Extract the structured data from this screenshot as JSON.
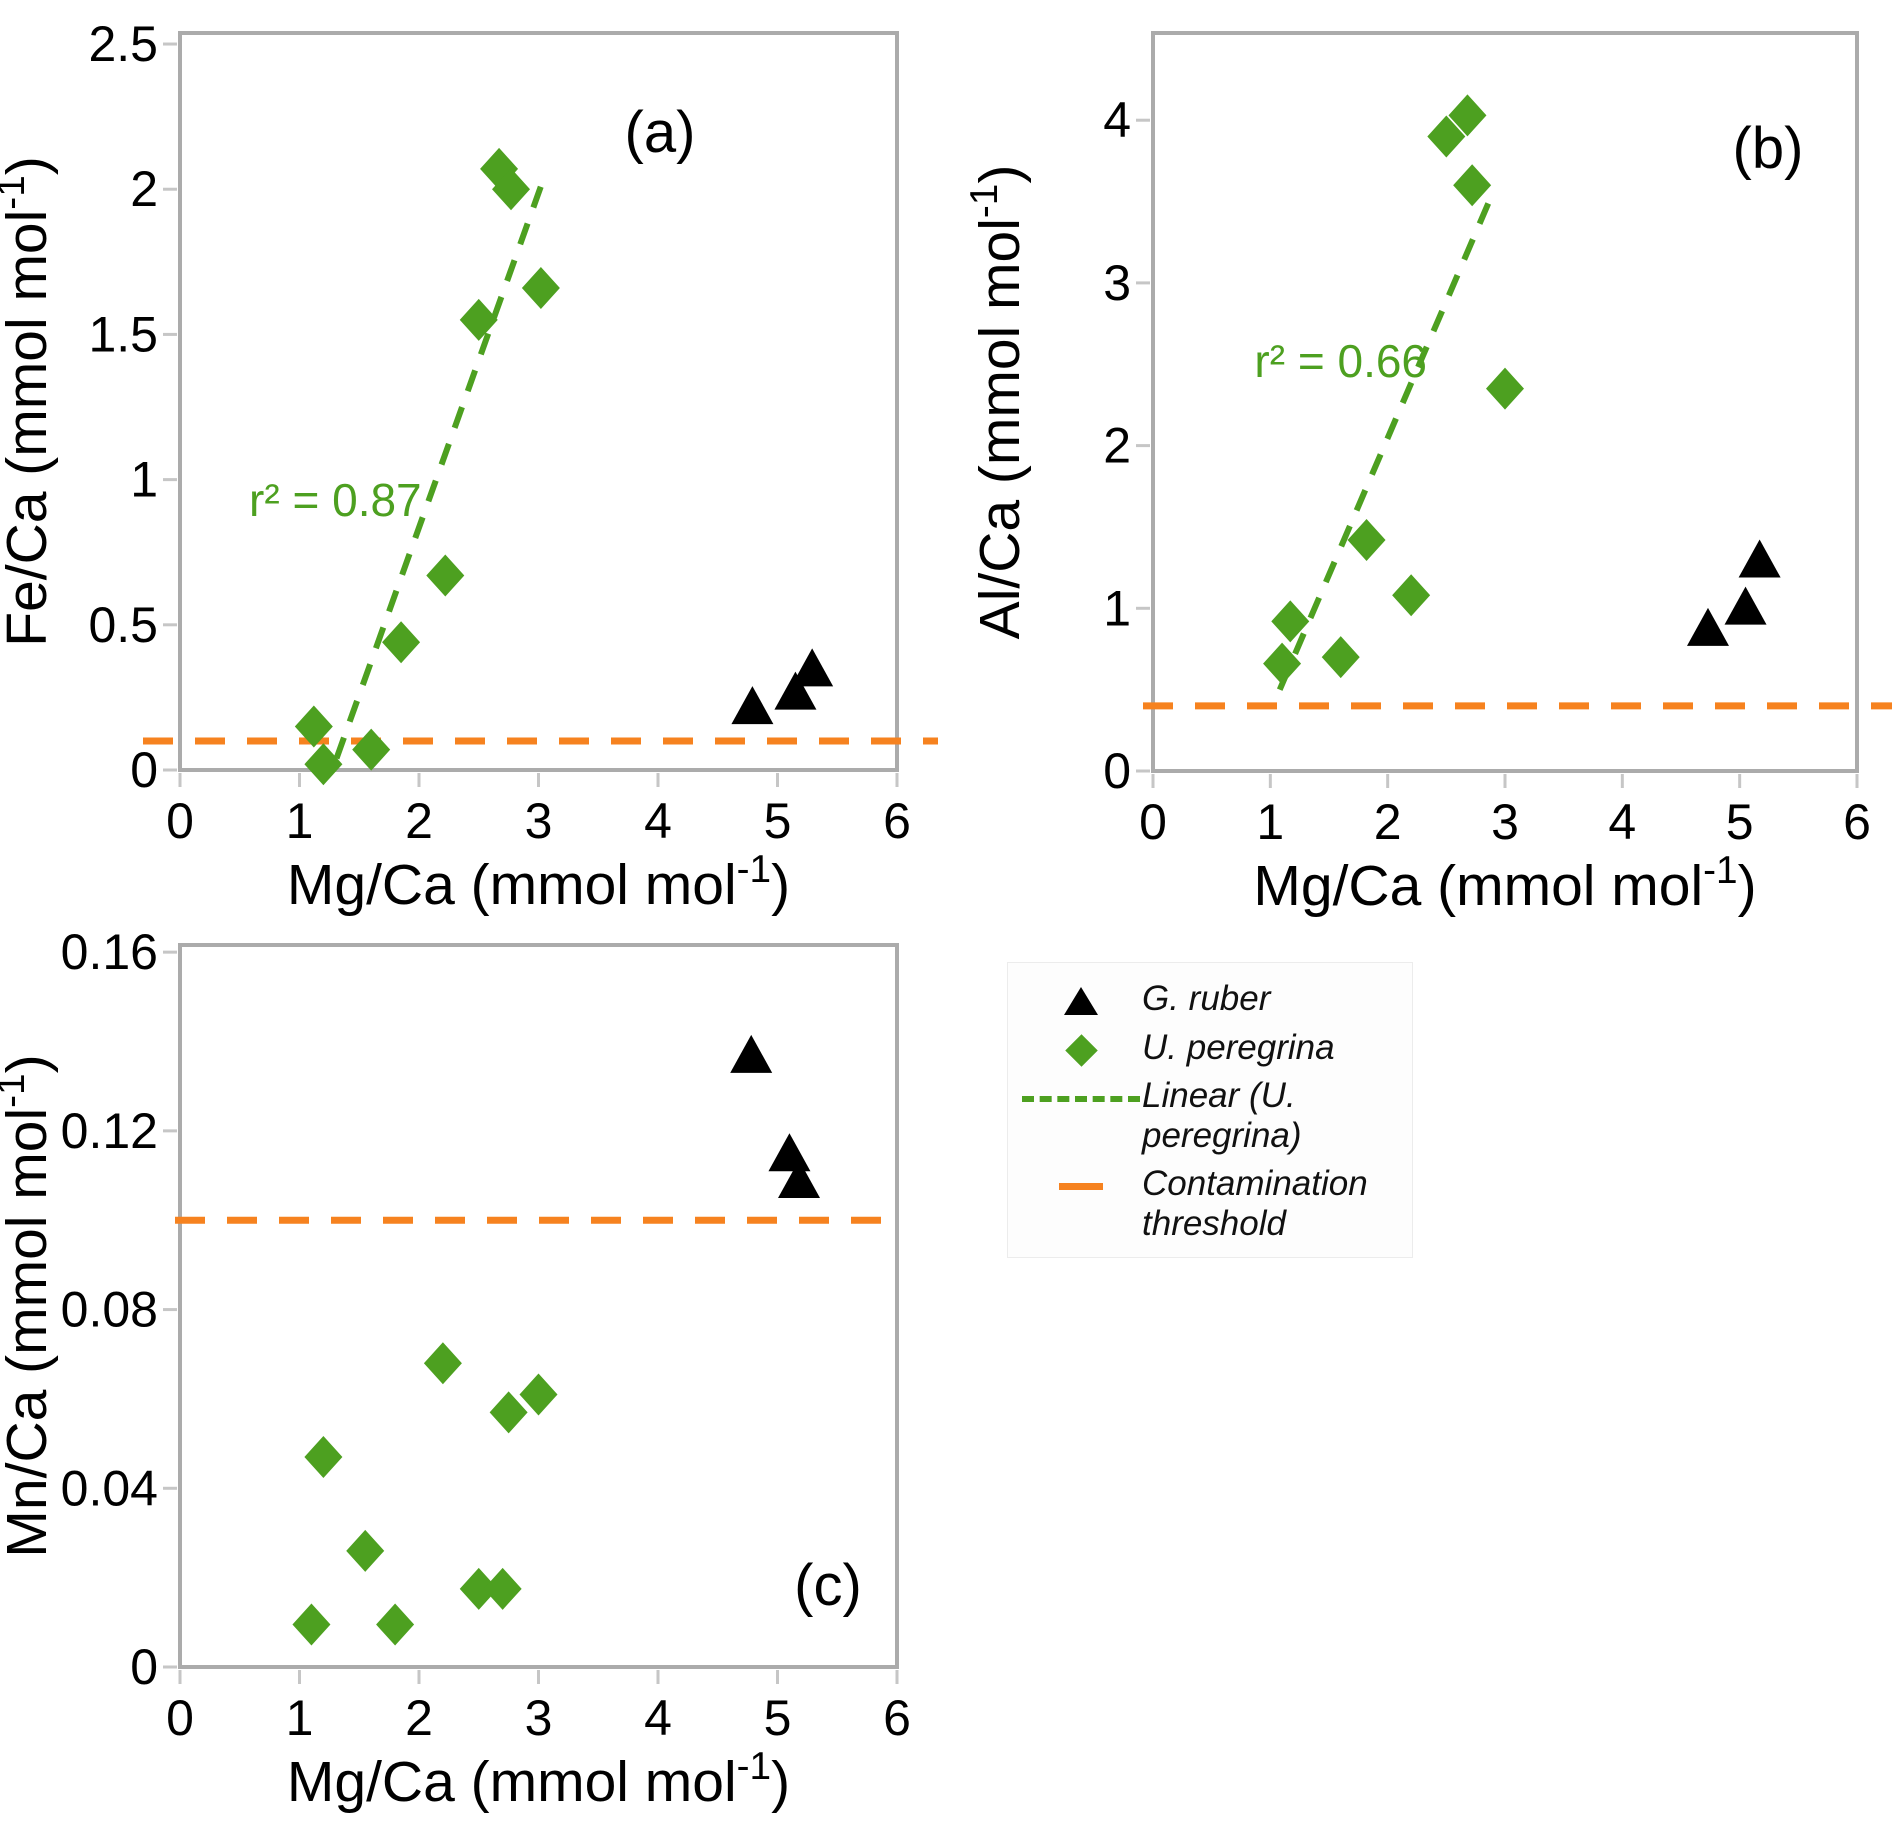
{
  "colors": {
    "u_peregrina_green": "#4da020",
    "g_ruber_black": "#000000",
    "threshold_orange": "#f6821f",
    "frame_gray": "#ababab",
    "tick_gray": "#c6c6c6",
    "text_black": "#000000",
    "legend_bg": "#fdfdfd"
  },
  "chart_data": [
    {
      "id": "a",
      "type": "scatter",
      "panel_label": "(a)",
      "xlabel": "Mg/Ca (mmol mol⁻¹)",
      "ylabel": "Fe/Ca (mmol mol⁻¹)",
      "xlim": [
        0,
        6
      ],
      "ylim": [
        0,
        2.538
      ],
      "xticks": [
        0,
        1,
        2,
        3,
        4,
        5,
        6
      ],
      "xtick_labels": [
        "0",
        "1",
        "2",
        "3",
        "4",
        "5",
        "6"
      ],
      "yticks": [
        0,
        0.5,
        1,
        1.5,
        2,
        2.5
      ],
      "ytick_labels": [
        "0",
        "0.5",
        "1",
        "1.5",
        "2",
        "2.5"
      ],
      "grid": false,
      "series": [
        {
          "name": "U. peregrina",
          "marker": "diamond",
          "points": [
            [
              1.12,
              0.15
            ],
            [
              1.2,
              0.02
            ],
            [
              1.6,
              0.07
            ],
            [
              1.85,
              0.44
            ],
            [
              2.22,
              0.67
            ],
            [
              2.5,
              1.55
            ],
            [
              2.67,
              2.07
            ],
            [
              2.77,
              2.0
            ],
            [
              3.02,
              1.66
            ]
          ]
        },
        {
          "name": "G. ruber",
          "marker": "triangle",
          "points": [
            [
              4.79,
              0.22
            ],
            [
              5.15,
              0.27
            ],
            [
              5.29,
              0.35
            ]
          ]
        }
      ],
      "trendline": {
        "x1": 1.31,
        "y1": 0.04,
        "x2": 3.02,
        "y2": 2.01
      },
      "r_squared": {
        "text": "r² = 0.87",
        "x": 1.3,
        "y": 0.93
      },
      "threshold_y": 0.1
    },
    {
      "id": "b",
      "type": "scatter",
      "panel_label": "(b)",
      "xlabel": "Mg/Ca (mmol mol⁻¹)",
      "ylabel": "Al/Ca (mmol mol⁻¹)",
      "xlim": [
        0,
        6
      ],
      "ylim": [
        0,
        4.536
      ],
      "xticks": [
        0,
        1,
        2,
        3,
        4,
        5,
        6
      ],
      "xtick_labels": [
        "0",
        "1",
        "2",
        "3",
        "4",
        "5",
        "6"
      ],
      "yticks": [
        0,
        1,
        2,
        3,
        4
      ],
      "ytick_labels": [
        "0",
        "1",
        "2",
        "3",
        "4"
      ],
      "grid": false,
      "series": [
        {
          "name": "U. peregrina",
          "marker": "diamond",
          "points": [
            [
              1.1,
              0.66
            ],
            [
              1.17,
              0.92
            ],
            [
              1.6,
              0.7
            ],
            [
              1.82,
              1.42
            ],
            [
              2.2,
              1.08
            ],
            [
              2.5,
              3.9
            ],
            [
              2.68,
              4.03
            ],
            [
              2.72,
              3.6
            ],
            [
              3.0,
              2.35
            ]
          ]
        },
        {
          "name": "G. ruber",
          "marker": "triangle",
          "points": [
            [
              4.73,
              0.88
            ],
            [
              5.05,
              1.01
            ],
            [
              5.17,
              1.3
            ]
          ]
        }
      ],
      "trendline": {
        "x1": 1.08,
        "y1": 0.5,
        "x2": 2.9,
        "y2": 3.56
      },
      "r_squared": {
        "text": "r² = 0.66",
        "x": 1.6,
        "y": 2.52
      },
      "threshold_y": 0.4
    },
    {
      "id": "c",
      "type": "scatter",
      "panel_label": "(c)",
      "xlabel": "Mg/Ca (mmol mol⁻¹)",
      "ylabel": "Mn/Ca (mmol mol⁻¹)",
      "xlim": [
        0,
        6
      ],
      "ylim": [
        0,
        0.1616
      ],
      "xticks": [
        0,
        1,
        2,
        3,
        4,
        5,
        6
      ],
      "xtick_labels": [
        "0",
        "1",
        "2",
        "3",
        "4",
        "5",
        "6"
      ],
      "yticks": [
        0,
        0.04,
        0.08,
        0.12,
        0.16
      ],
      "ytick_labels": [
        "0",
        "0.04",
        "0.08",
        "0.12",
        "0.16"
      ],
      "grid": false,
      "series": [
        {
          "name": "U. peregrina",
          "marker": "diamond",
          "points": [
            [
              1.1,
              0.0095
            ],
            [
              1.2,
              0.047
            ],
            [
              1.55,
              0.026
            ],
            [
              1.8,
              0.0095
            ],
            [
              2.2,
              0.068
            ],
            [
              2.5,
              0.0175
            ],
            [
              2.7,
              0.0175
            ],
            [
              2.75,
              0.057
            ],
            [
              3.0,
              0.061
            ]
          ]
        },
        {
          "name": "G. ruber",
          "marker": "triangle",
          "points": [
            [
              4.78,
              0.137
            ],
            [
              5.1,
              0.115
            ],
            [
              5.18,
              0.109
            ]
          ]
        }
      ],
      "trendline": null,
      "r_squared": null,
      "threshold_y": 0.1
    }
  ],
  "legend": {
    "items": [
      {
        "marker": "triangle",
        "label": "G. ruber"
      },
      {
        "marker": "diamond",
        "label": "U. peregrina"
      },
      {
        "marker": "dashed-line",
        "label": "Linear (U. peregrina)"
      },
      {
        "marker": "orange-dash",
        "label": "Contamination threshold"
      }
    ]
  }
}
